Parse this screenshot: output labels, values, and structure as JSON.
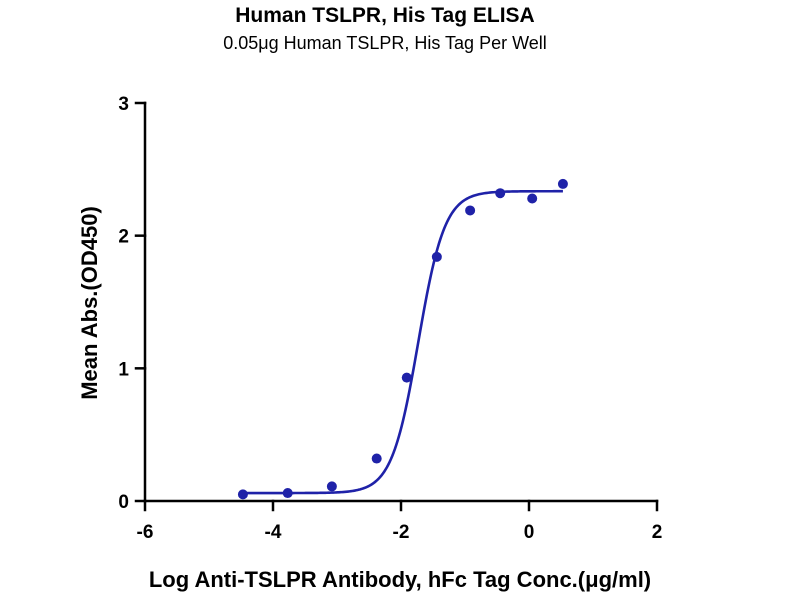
{
  "chart_data": {
    "type": "scatter",
    "title": "Human TSLPR, His Tag ELISA",
    "subtitle": "0.05μg Human TSLPR, His Tag Per Well",
    "xlabel": "Log Anti-TSLPR Antibody, hFc Tag Conc.(μg/ml)",
    "ylabel": "Mean Abs.(OD450)",
    "xlim": [
      -6,
      2
    ],
    "ylim": [
      0,
      3
    ],
    "xticks": [
      -6,
      -4,
      -2,
      0,
      2
    ],
    "yticks": [
      0,
      1,
      2,
      3
    ],
    "grid": false,
    "fit": "four-parameter logistic",
    "series": [
      {
        "color": "#1f22a8",
        "x": [
          -4.47,
          -3.77,
          -3.08,
          -2.38,
          -1.91,
          -1.44,
          -0.92,
          -0.45,
          0.05,
          0.53
        ],
        "y": [
          0.05,
          0.06,
          0.11,
          0.32,
          0.93,
          1.84,
          2.19,
          2.32,
          2.28,
          2.39
        ]
      }
    ]
  }
}
